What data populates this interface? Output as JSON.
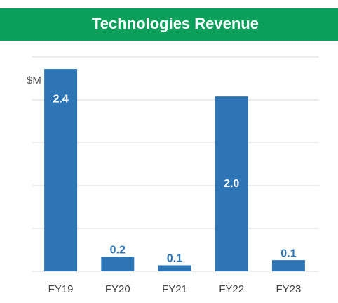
{
  "chart_data": {
    "type": "bar",
    "title": "Technologies Revenue",
    "y_label": "$M",
    "categories": [
      "FY19",
      "FY20",
      "FY21",
      "FY22",
      "FY23"
    ],
    "values": [
      2.36,
      0.17,
      0.07,
      2.04,
      0.13
    ],
    "value_labels": [
      "2.4",
      "0.2",
      "0.1",
      "2.0",
      "0.1"
    ],
    "color": "#2e75b6",
    "ylim": [
      0,
      2.5
    ],
    "yticks": [
      0,
      0.5,
      1,
      1.5,
      2,
      2.5
    ],
    "grid": true
  }
}
